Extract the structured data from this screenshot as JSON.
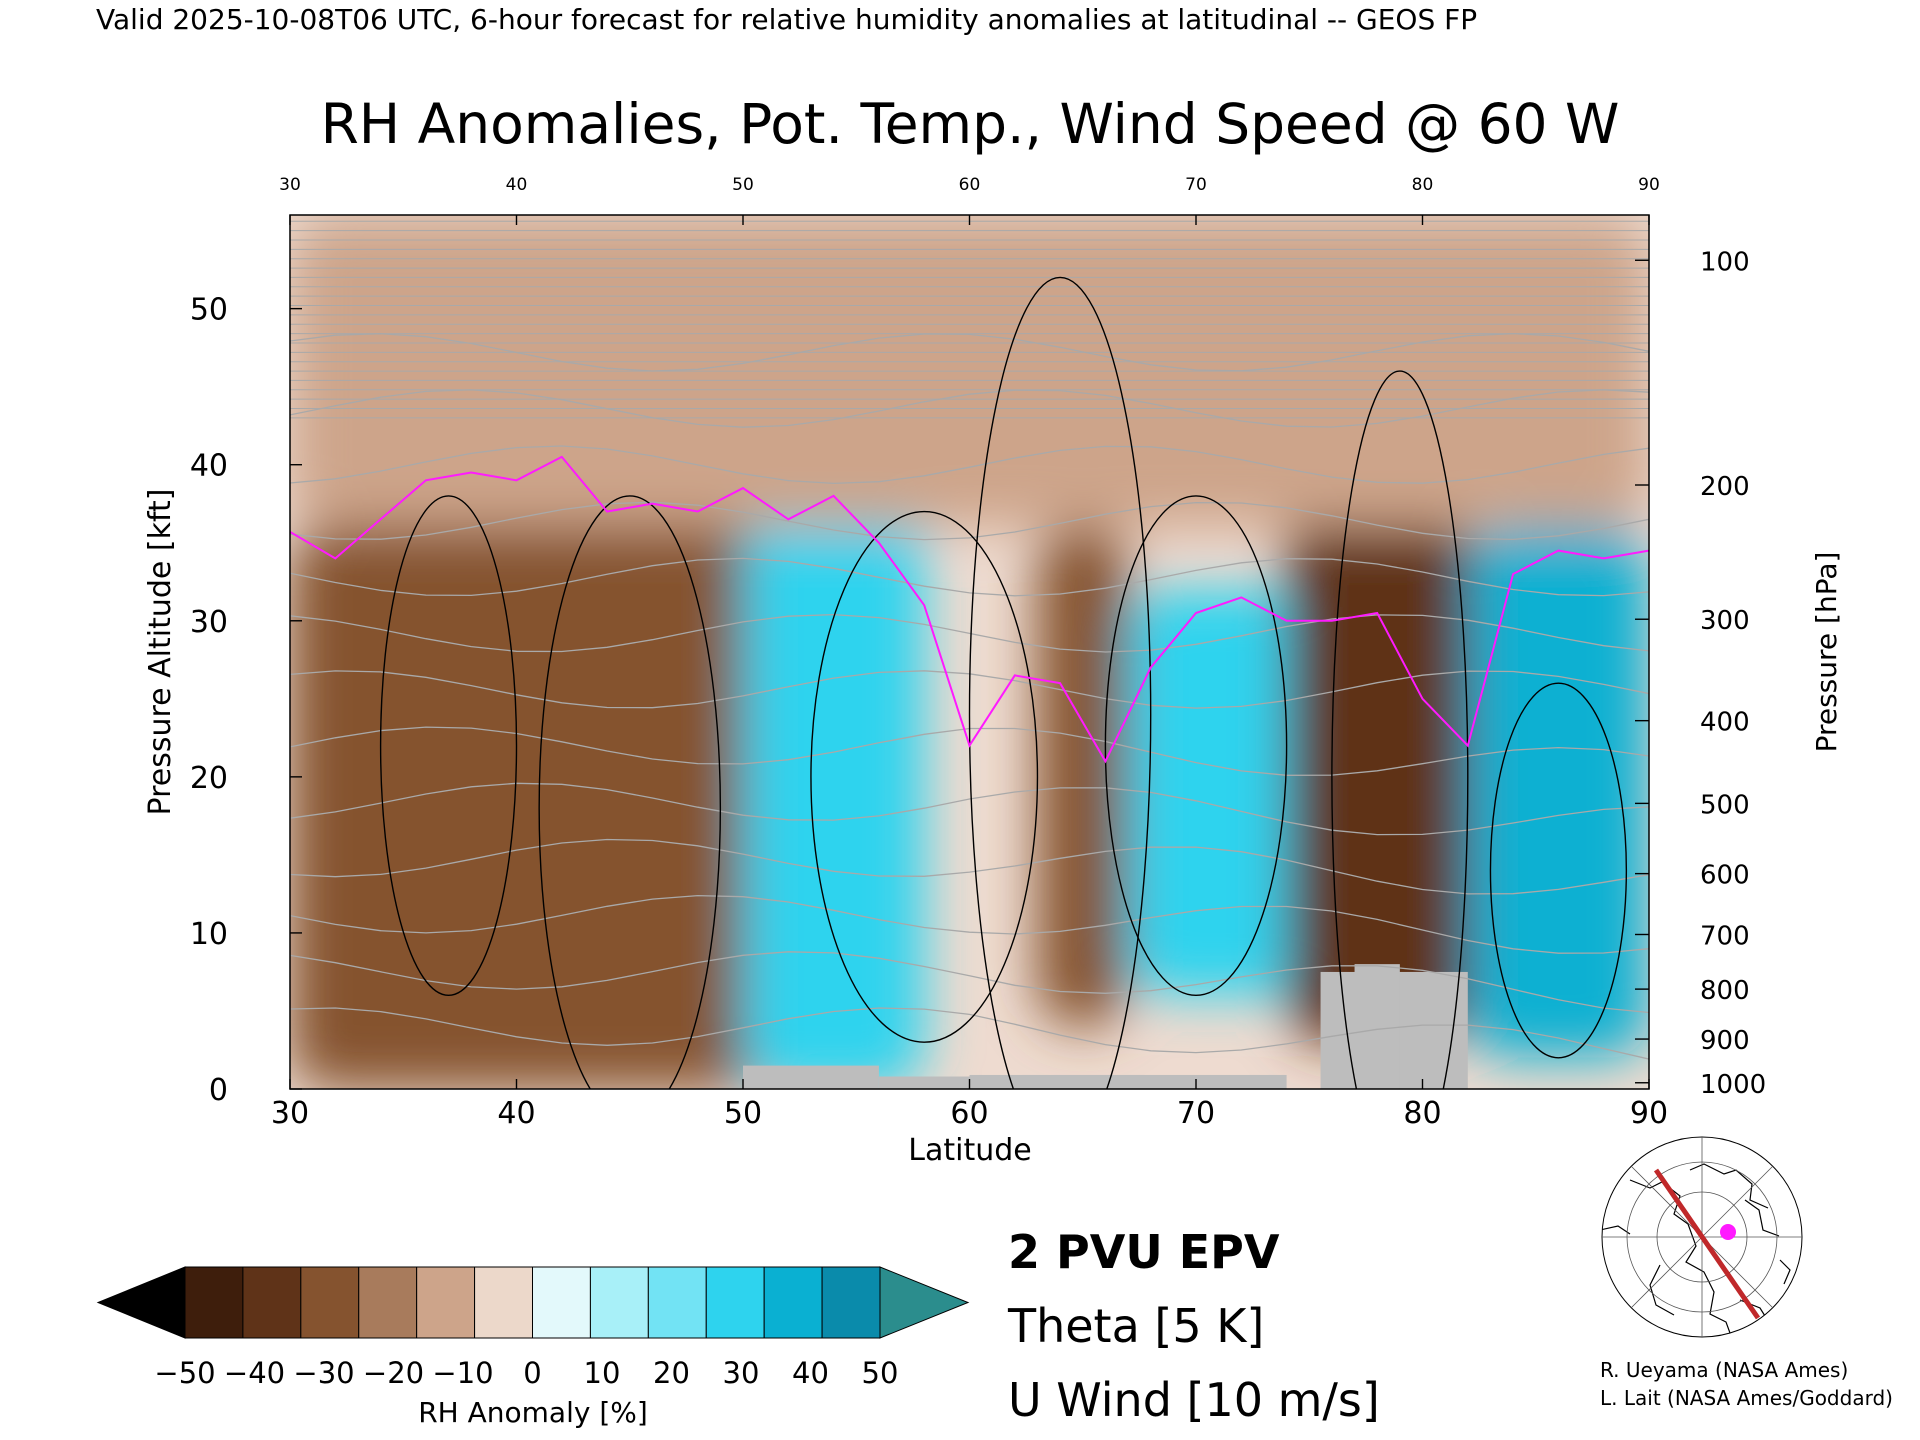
{
  "header": {
    "valid_line": "Valid 2025-10-08T06 UTC, 6-hour forecast for relative humidity anomalies at latitudinal -- GEOS FP"
  },
  "chart_data": {
    "type": "heatmap",
    "title": "RH Anomalies, Pot. Temp., Wind Speed @ 60 W",
    "xlabel": "Latitude",
    "ylabel": "Pressure Altitude [kft]",
    "y2label": "Pressure [hPa]",
    "xlim": [
      30,
      90
    ],
    "ylim": [
      0,
      56
    ],
    "x_ticks": [
      30,
      40,
      50,
      60,
      70,
      80,
      90
    ],
    "x_ticks_top": [
      30,
      40,
      50,
      60,
      70,
      80,
      90
    ],
    "y_ticks": [
      0,
      10,
      20,
      30,
      40,
      50
    ],
    "pressure_ticks": [
      {
        "hpa": "100",
        "kft": 53.1
      },
      {
        "hpa": "200",
        "kft": 38.7
      },
      {
        "hpa": "300",
        "kft": 30.1
      },
      {
        "hpa": "400",
        "kft": 23.6
      },
      {
        "hpa": "500",
        "kft": 18.3
      },
      {
        "hpa": "600",
        "kft": 13.8
      },
      {
        "hpa": "700",
        "kft": 9.9
      },
      {
        "hpa": "800",
        "kft": 6.4
      },
      {
        "hpa": "900",
        "kft": 3.2
      },
      {
        "hpa": "1000",
        "kft": 0.4
      }
    ],
    "colorbar": {
      "label": "RH Anomaly [%]",
      "tick_labels": [
        "−50",
        "−40",
        "−30",
        "−20",
        "−10",
        "0",
        "10",
        "20",
        "30",
        "40",
        "50"
      ],
      "colors": [
        "#000000",
        "#3e1e0c",
        "#5f3318",
        "#85532f",
        "#a87b5c",
        "#cda48a",
        "#ecd8ca",
        "#e3f9fb",
        "#a8f0f8",
        "#72e3f4",
        "#2ed3ee",
        "#0ab0d2",
        "#0a8bab",
        "#2b8d8d"
      ]
    },
    "legend": {
      "epv": "2 PVU EPV",
      "theta": "Theta [5 K]",
      "wind": "U Wind [10 m/s]"
    },
    "colors": {
      "epv": "#ff1aff",
      "theta": "#a9a9a9",
      "wind": "#000000",
      "terrain": "#bdbdbd",
      "section_line": "#c0282a"
    },
    "anomaly_regions": [
      {
        "x": [
          30,
          52
        ],
        "y": [
          0,
          36
        ],
        "rh": -30
      },
      {
        "x": [
          50,
          58
        ],
        "y": [
          0,
          40
        ],
        "rh": 30
      },
      {
        "x": [
          60,
          70
        ],
        "y": [
          36,
          56
        ],
        "rh": -30
      },
      {
        "x": [
          63,
          67
        ],
        "y": [
          4,
          36
        ],
        "rh": -30
      },
      {
        "x": [
          67,
          79
        ],
        "y": [
          6,
          32
        ],
        "rh": 30
      },
      {
        "x": [
          74,
          82
        ],
        "y": [
          3,
          40
        ],
        "rh": -40
      },
      {
        "x": [
          82,
          90
        ],
        "y": [
          2,
          36
        ],
        "rh": 40
      },
      {
        "x": [
          30,
          90
        ],
        "y": [
          36,
          56
        ],
        "rh": -10
      }
    ],
    "epv_2pvu": {
      "lat": [
        30,
        32,
        34,
        36,
        38,
        40,
        42,
        44,
        46,
        48,
        50,
        52,
        54,
        56,
        58,
        60,
        62,
        64,
        66,
        68,
        70,
        72,
        74,
        76,
        78,
        80,
        82,
        84,
        86,
        88,
        90
      ],
      "kft": [
        35.7,
        34,
        36.5,
        39,
        39.5,
        39,
        40.5,
        37,
        37.5,
        37,
        38.5,
        36.5,
        38,
        35,
        31,
        22,
        26.5,
        26,
        21,
        27,
        30.5,
        31.5,
        30,
        30,
        30.5,
        25,
        22,
        33,
        34.5,
        34,
        34.5
      ]
    },
    "theta_levels_K": [
      300,
      310,
      320,
      330,
      340,
      350,
      360,
      370,
      380,
      390,
      400,
      410,
      420
    ],
    "u_wind_contours_ms": [
      -10,
      0,
      10,
      20,
      30
    ],
    "map_inset": {
      "section_lon": "60 W",
      "section_lat": [
        30,
        90
      ]
    }
  },
  "credits": {
    "line1": "R. Ueyama (NASA Ames)",
    "line2": "L. Lait (NASA Ames/Goddard)"
  }
}
